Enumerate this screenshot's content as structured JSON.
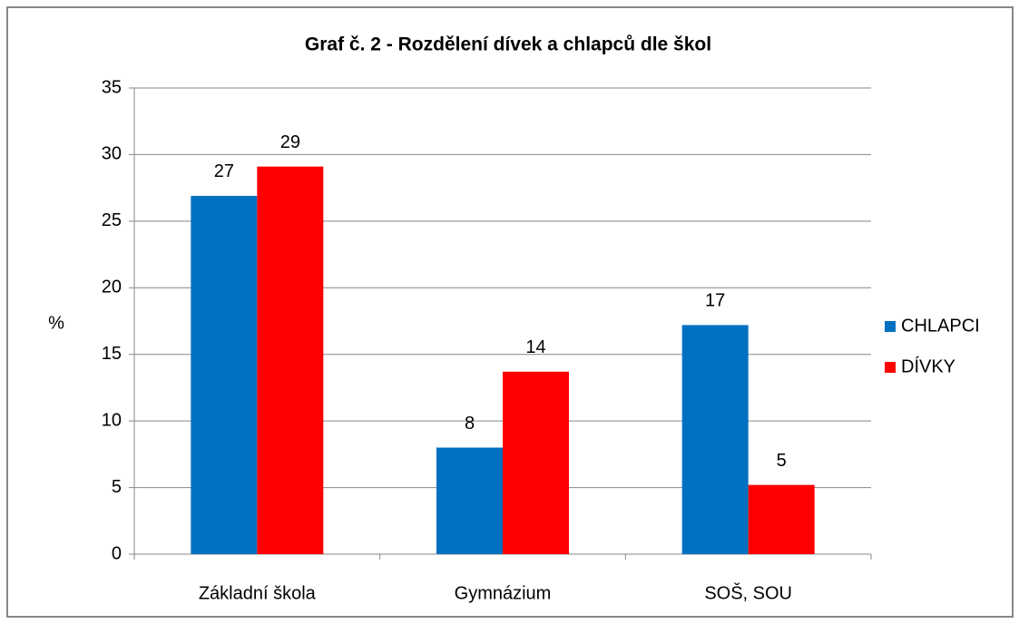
{
  "chart_data": {
    "type": "bar",
    "title": "Graf č. 2 - Rozdělení dívek a chlapců dle škol",
    "y_label": "%",
    "categories": [
      "Základní škola",
      "Gymnázium",
      "SOŠ, SOU"
    ],
    "series": [
      {
        "name": "CHLAPCI",
        "color": "#0070c0",
        "values": [
          26.9,
          8.0,
          17.2
        ],
        "value_labels": [
          "27",
          "8",
          "17"
        ]
      },
      {
        "name": "DÍVKY",
        "color": "#ff0000",
        "values": [
          29.1,
          13.7,
          5.2
        ],
        "value_labels": [
          "29",
          "14",
          "5"
        ]
      }
    ],
    "ylim": [
      0,
      35
    ],
    "yticks": [
      0,
      5,
      10,
      15,
      20,
      25,
      30,
      35
    ],
    "grid": true,
    "legend": "right"
  }
}
